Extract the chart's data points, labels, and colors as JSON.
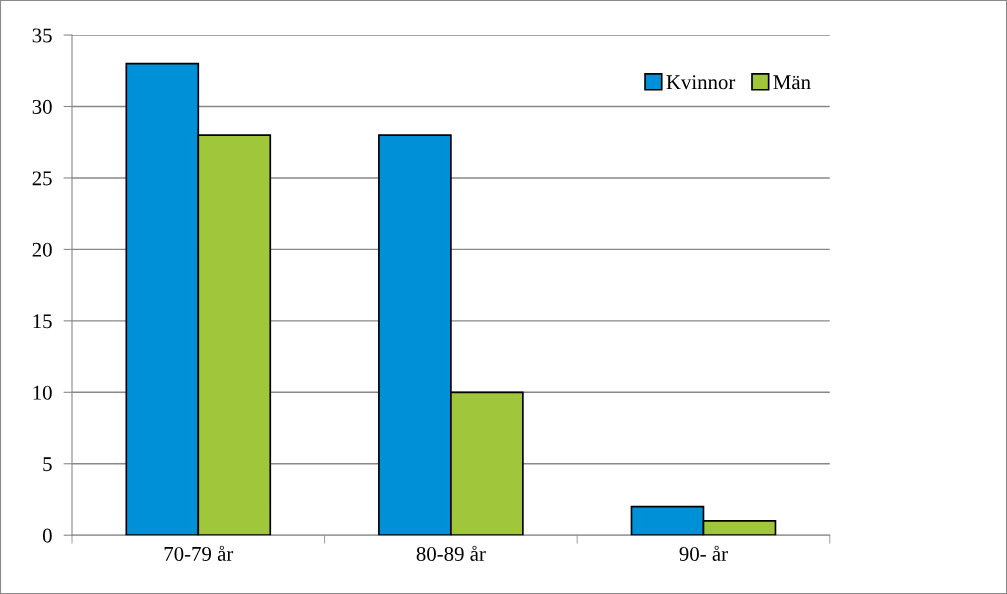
{
  "chart_data": {
    "type": "bar",
    "categories": [
      "70-79 år",
      "80-89 år",
      "90- år"
    ],
    "series": [
      {
        "name": "Kvinnor",
        "color": "#0090d8",
        "values": [
          33,
          28,
          2
        ]
      },
      {
        "name": "Män",
        "color": "#a0c63c",
        "values": [
          28,
          10,
          1
        ]
      }
    ],
    "ylim": [
      0,
      35
    ],
    "yticks": [
      0,
      5,
      10,
      15,
      20,
      25,
      30,
      35
    ],
    "grid": "y",
    "legend": "top right"
  }
}
